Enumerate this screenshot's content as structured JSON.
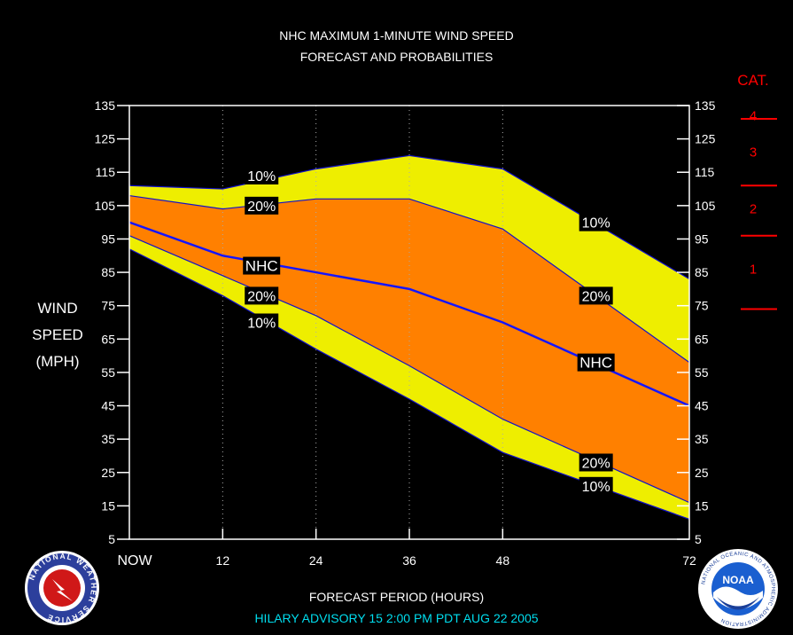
{
  "chart_data": {
    "type": "area",
    "title": "NHC MAXIMUM 1-MINUTE WIND SPEED",
    "subtitle": "FORECAST AND PROBABILITIES",
    "xlabel": "FORECAST PERIOD (HOURS)",
    "ylabel": [
      "WIND",
      "SPEED",
      "(MPH)"
    ],
    "xlim": [
      0,
      72
    ],
    "ylim": [
      5,
      135
    ],
    "x_tick_values": [
      0,
      12,
      24,
      36,
      48,
      72
    ],
    "x_tick_labels": [
      "NOW",
      "12",
      "24",
      "36",
      "48",
      "72"
    ],
    "y_ticks": [
      5,
      15,
      25,
      35,
      45,
      55,
      65,
      75,
      85,
      95,
      105,
      115,
      125,
      135
    ],
    "grid": "vertical dotted",
    "x": [
      0,
      12,
      24,
      36,
      48,
      72
    ],
    "series": [
      {
        "name": "10%",
        "values": [
          111,
          110,
          116,
          120,
          116,
          83
        ]
      },
      {
        "name": "20%",
        "values": [
          108,
          104,
          107,
          107,
          98,
          58
        ]
      },
      {
        "name": "NHC",
        "values": [
          100,
          90,
          85,
          80,
          70,
          45
        ]
      },
      {
        "name": "20%",
        "values": [
          96,
          84,
          72,
          57,
          41,
          16
        ]
      },
      {
        "name": "10%",
        "values": [
          92,
          78,
          62,
          47,
          31,
          11
        ]
      }
    ],
    "band_labels": [
      {
        "text": "10%",
        "x": 17,
        "y": 114
      },
      {
        "text": "20%",
        "x": 17,
        "y": 105
      },
      {
        "text": "NHC",
        "x": 17,
        "y": 87
      },
      {
        "text": "20%",
        "x": 17,
        "y": 78
      },
      {
        "text": "10%",
        "x": 17,
        "y": 70
      },
      {
        "text": "10%",
        "x": 60,
        "y": 100
      },
      {
        "text": "20%",
        "x": 60,
        "y": 78
      },
      {
        "text": "NHC",
        "x": 60,
        "y": 58
      },
      {
        "text": "20%",
        "x": 60,
        "y": 28
      },
      {
        "text": "10%",
        "x": 60,
        "y": 21
      }
    ],
    "categories": {
      "title": "CAT.",
      "labels": [
        {
          "text": "4",
          "y": 132
        },
        {
          "text": "3",
          "y": 121
        },
        {
          "text": "2",
          "y": 104
        },
        {
          "text": "1",
          "y": 86
        }
      ],
      "boundaries": [
        131,
        111,
        96,
        74
      ]
    },
    "colors": {
      "outer_band": "#eeee00",
      "inner_band": "#ff8000",
      "nhc_line": "#1515ff",
      "edge_line": "#1010cc",
      "category": "#ff0000",
      "axis": "#ffffff",
      "advisory": "#00ddee"
    }
  },
  "advisory": "HILARY   ADVISORY  15 2:00  PM  PDT  AUG 22  2005",
  "logos": {
    "left": "nws-logo",
    "left_text": "NATIONAL WEATHER SERVICE",
    "right": "noaa-logo",
    "right_text": "NATIONAL OCEANIC AND ATMOSPHERIC ADMINISTRATION",
    "right_center": "NOAA"
  }
}
